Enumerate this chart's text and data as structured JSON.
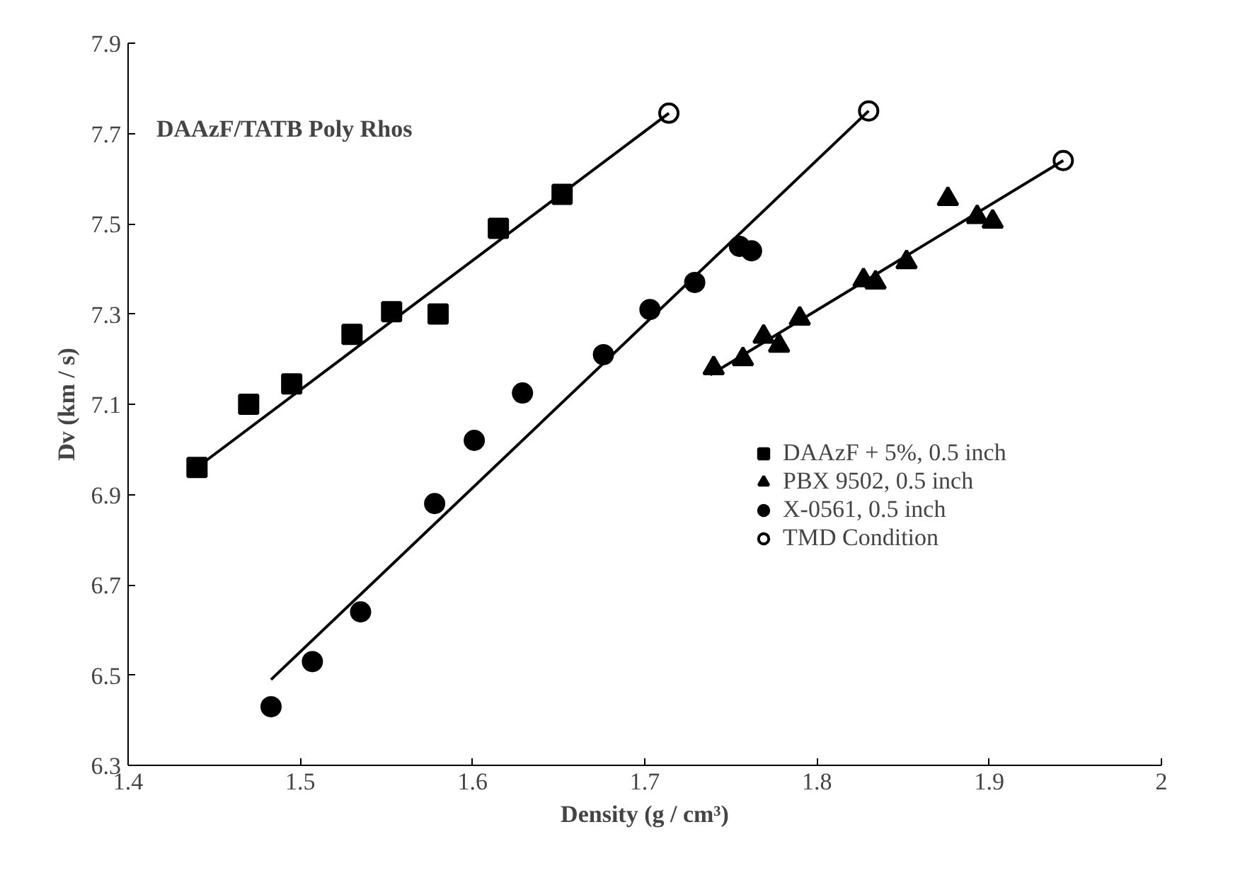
{
  "chart_data": {
    "type": "scatter",
    "title": "DAAzF/TATB Poly Rhos",
    "xlabel": "Density (g / cm³)",
    "ylabel": "Dv (km / s)",
    "xlim": [
      1.4,
      2.0
    ],
    "ylim": [
      6.3,
      7.9
    ],
    "xticks": [
      1.4,
      1.5,
      1.6,
      1.7,
      1.8,
      1.9,
      {
        "value": 2.0,
        "label": "2"
      }
    ],
    "yticks": [
      6.3,
      6.5,
      6.7,
      6.9,
      7.1,
      7.3,
      7.5,
      7.7,
      7.9
    ],
    "grid": false,
    "legend": "right",
    "series": [
      {
        "name": "DAAzF + 5%, 0.5 inch",
        "marker": "square",
        "color": "#000000",
        "x": [
          1.44,
          1.47,
          1.495,
          1.53,
          1.553,
          1.58,
          1.615,
          1.652
        ],
        "values": [
          6.96,
          7.1,
          7.145,
          7.255,
          7.305,
          7.3,
          7.49,
          7.565
        ]
      },
      {
        "name": "PBX 9502, 0.5 inch",
        "marker": "triangle",
        "color": "#000000",
        "x": [
          1.74,
          1.757,
          1.769,
          1.778,
          1.79,
          1.827,
          1.834,
          1.852,
          1.876,
          1.893,
          1.902
        ],
        "values": [
          7.18,
          7.2,
          7.25,
          7.23,
          7.29,
          7.375,
          7.37,
          7.415,
          7.555,
          7.515,
          7.505
        ]
      },
      {
        "name": "X-0561, 0.5 inch",
        "marker": "circle",
        "color": "#000000",
        "x": [
          1.483,
          1.507,
          1.535,
          1.578,
          1.601,
          1.629,
          1.676,
          1.703,
          1.729,
          1.755,
          1.762
        ],
        "values": [
          6.43,
          6.53,
          6.64,
          6.88,
          7.02,
          7.125,
          7.21,
          7.31,
          7.37,
          7.45,
          7.44
        ]
      },
      {
        "name": "TMD Condition",
        "marker": "circle_open",
        "color": "#000000",
        "x": [
          1.714,
          1.83,
          1.943
        ],
        "values": [
          7.745,
          7.75,
          7.64
        ]
      },
      {
        "type": "line",
        "color": "#000000",
        "x": [
          1.44,
          1.714
        ],
        "values": [
          6.96,
          7.745
        ]
      },
      {
        "type": "line",
        "color": "#000000",
        "x": [
          1.483,
          1.83
        ],
        "values": [
          6.49,
          7.75
        ]
      },
      {
        "type": "line",
        "color": "#000000",
        "x": [
          1.738,
          1.943
        ],
        "values": [
          7.165,
          7.64
        ]
      }
    ]
  }
}
